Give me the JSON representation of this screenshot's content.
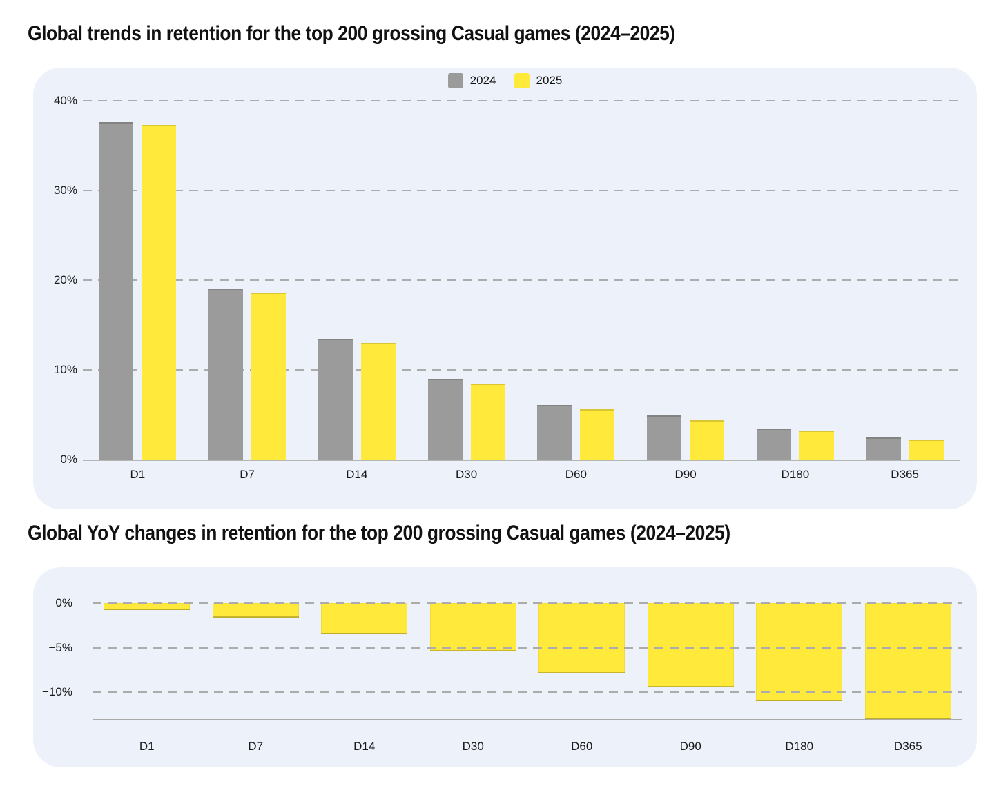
{
  "page": {
    "background": "#FFFFFF"
  },
  "chart_data": [
    {
      "type": "bar",
      "title": "Global trends in retention for the top 200 grossing Casual games (2024–2025)",
      "categories": [
        "D1",
        "D7",
        "D14",
        "D30",
        "D60",
        "D90",
        "D180",
        "D365"
      ],
      "series": [
        {
          "name": "2024",
          "color": "#9B9B9B",
          "values": [
            37.6,
            19.0,
            13.5,
            9.0,
            6.1,
            4.9,
            3.5,
            2.5
          ]
        },
        {
          "name": "2025",
          "color": "#FFE93B",
          "values": [
            37.3,
            18.6,
            13.0,
            8.5,
            5.6,
            4.4,
            3.2,
            2.2
          ]
        }
      ],
      "ylim": [
        0,
        40
      ],
      "yticks": [
        {
          "label": "40%",
          "value": 40,
          "line": "dashed"
        },
        {
          "label": "30%",
          "value": 30,
          "line": "dashed"
        },
        {
          "label": "20%",
          "value": 20,
          "line": "dashed"
        },
        {
          "label": "10%",
          "value": 10,
          "line": "dashed"
        },
        {
          "label": "0%",
          "value": 0,
          "line": "axis"
        }
      ],
      "grid": "horizontal-dashed",
      "legend_position": "top-center",
      "background": "#EDF1FA",
      "grid_color": "#ACACAC",
      "text_color": "#1A1A1A"
    },
    {
      "type": "bar",
      "title": "Global YoY changes in retention for the top 200 grossing Casual games (2024–2025)",
      "categories": [
        "D1",
        "D7",
        "D14",
        "D30",
        "D60",
        "D90",
        "D180",
        "D365"
      ],
      "series": [
        {
          "color": "#FFE93B",
          "values": [
            -0.8,
            -1.6,
            -3.5,
            -5.4,
            -7.9,
            -9.4,
            -11.0,
            -13.0
          ]
        }
      ],
      "ylim": [
        -13,
        0
      ],
      "yticks": [
        {
          "label": "0%",
          "value": 0,
          "line": "dashed"
        },
        {
          "label": "−5%",
          "value": -5,
          "line": "dashed"
        },
        {
          "label": "−10%",
          "value": -10,
          "line": "dashed"
        }
      ],
      "grid": "horizontal-dashed",
      "legend_position": "none",
      "background": "#EDF1FA",
      "grid_color": "#ACACAC",
      "text_color": "#1A1A1A"
    }
  ]
}
